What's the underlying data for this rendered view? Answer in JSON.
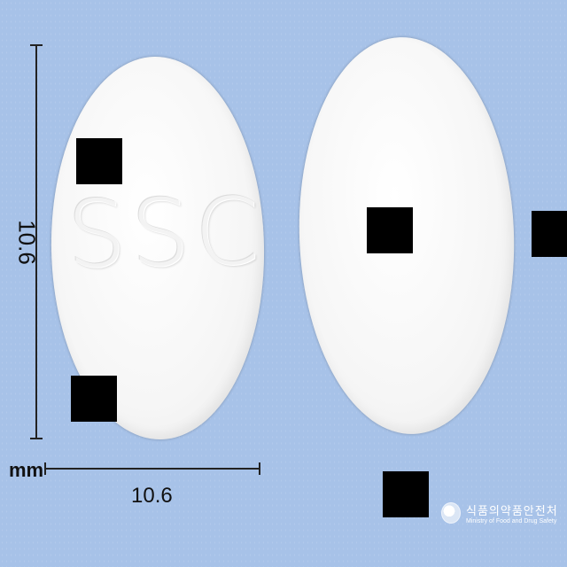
{
  "image": {
    "background_color": "#a7c2e8",
    "tablet_color": "#f6f6f6",
    "redaction_color": "#000000"
  },
  "tablets": {
    "front_imprint": "SSC",
    "back_imprint": ""
  },
  "dimensions": {
    "height_value": "10.6",
    "width_value": "10.6",
    "unit": "mm"
  },
  "watermark": {
    "korean": "식품의약품안전처",
    "english": "Ministry of Food and Drug Safety",
    "icon": "mfds-logo-icon"
  }
}
